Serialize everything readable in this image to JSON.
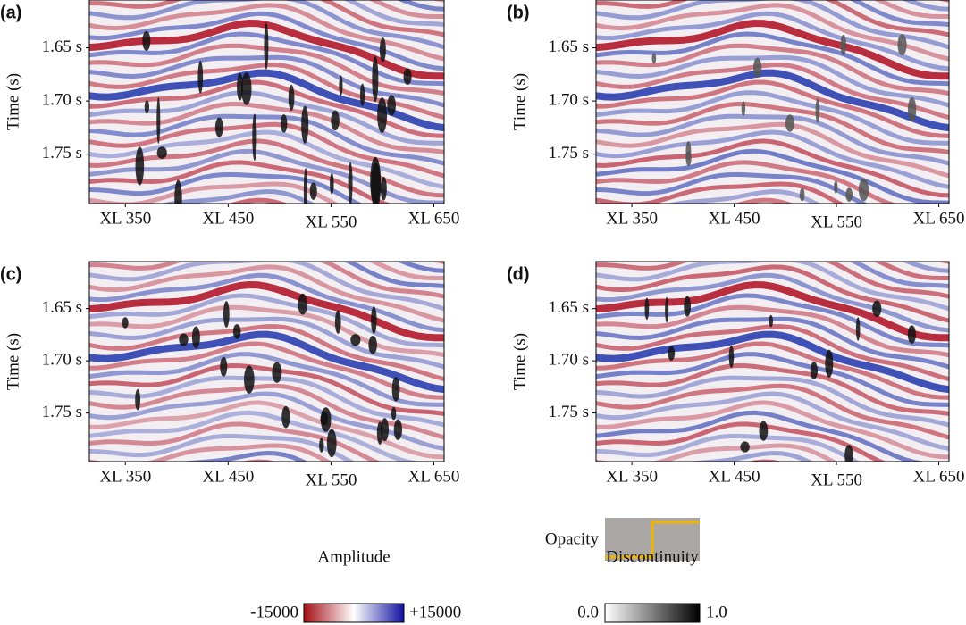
{
  "panels": [
    {
      "label": "(a)",
      "ylabel": "Time (s)",
      "ylim": [
        1.605,
        1.7965
      ],
      "xlim": [
        315,
        660
      ],
      "yticks": [
        {
          "value": 1.65,
          "label": "1.65 s"
        },
        {
          "value": 1.7,
          "label": "1.70 s"
        },
        {
          "value": 1.75,
          "label": "1.75 s"
        }
      ],
      "xticks": [
        {
          "value": 350,
          "label": "XL 350"
        },
        {
          "value": 450,
          "label": "XL 450"
        },
        {
          "value": 550,
          "label": "XL 550"
        },
        {
          "value": 650,
          "label": "XL 650"
        }
      ]
    },
    {
      "label": "(b)",
      "ylabel": "Time (s)",
      "ylim": [
        1.605,
        1.7965
      ],
      "xlim": [
        315,
        660
      ],
      "yticks": [
        {
          "value": 1.65,
          "label": "1.65 s"
        },
        {
          "value": 1.7,
          "label": "1.70 s"
        },
        {
          "value": 1.75,
          "label": "1.75 s"
        }
      ],
      "xticks": [
        {
          "value": 350,
          "label": "XL 350"
        },
        {
          "value": 450,
          "label": "XL 450"
        },
        {
          "value": 550,
          "label": "XL 550"
        },
        {
          "value": 650,
          "label": "XL 650"
        }
      ]
    },
    {
      "label": "(c)",
      "ylabel": "Time (s)",
      "ylim": [
        1.605,
        1.7965
      ],
      "xlim": [
        315,
        660
      ],
      "yticks": [
        {
          "value": 1.65,
          "label": "1.65 s"
        },
        {
          "value": 1.7,
          "label": "1.70 s"
        },
        {
          "value": 1.75,
          "label": "1.75 s"
        }
      ],
      "xticks": [
        {
          "value": 350,
          "label": "XL 350"
        },
        {
          "value": 450,
          "label": "XL 450"
        },
        {
          "value": 550,
          "label": "XL 550"
        },
        {
          "value": 650,
          "label": "XL 650"
        }
      ]
    },
    {
      "label": "(d)",
      "ylabel": "Time (s)",
      "ylim": [
        1.605,
        1.7965
      ],
      "xlim": [
        315,
        660
      ],
      "yticks": [
        {
          "value": 1.65,
          "label": "1.65 s"
        },
        {
          "value": 1.7,
          "label": "1.70 s"
        },
        {
          "value": 1.75,
          "label": "1.75 s"
        }
      ],
      "xticks": [
        {
          "value": 350,
          "label": "XL 350"
        },
        {
          "value": 450,
          "label": "XL 450"
        },
        {
          "value": 550,
          "label": "XL 550"
        },
        {
          "value": 650,
          "label": "XL 650"
        }
      ]
    }
  ],
  "opacity": {
    "label": "Opacity"
  },
  "amplitude": {
    "label": "Amplitude",
    "min_label": "-15000",
    "max_label": "+15000"
  },
  "discontinuity": {
    "label": "Discontinuity",
    "min_label": "0.0",
    "max_label": "1.0"
  }
}
